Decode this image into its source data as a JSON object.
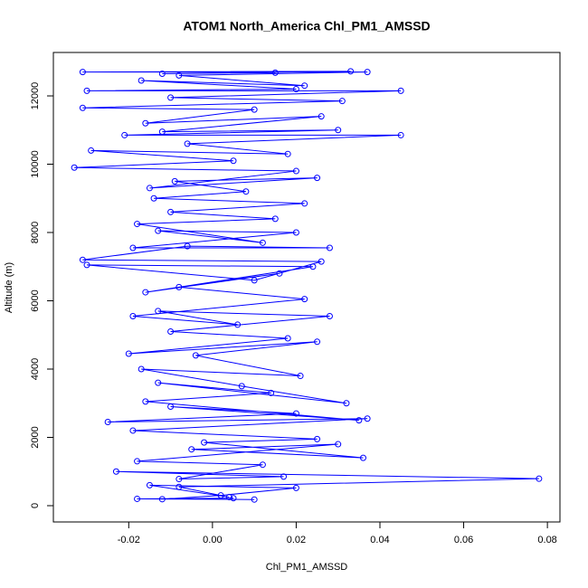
{
  "chart_data": {
    "type": "line",
    "title": "ATOM1 North_America Chl_PM1_AMSSD",
    "x_label": "Chl_PM1_AMSSD",
    "y_label": "Altitude (m)",
    "color": "#0000ff",
    "markers": true,
    "xlim": [
      -0.038,
      0.083
    ],
    "ylim": [
      -477,
      13272
    ],
    "xticks": [
      -0.02,
      {
        "value": 0,
        "label": "0.00"
      },
      0.02,
      0.04,
      0.06,
      0.08
    ],
    "yticks": [
      0,
      2000,
      4000,
      6000,
      8000,
      10000,
      12000
    ],
    "x": [
      0.01,
      -0.018,
      0.005,
      -0.012,
      0.002,
      0.02,
      -0.015,
      0.004,
      -0.008,
      0.078,
      -0.023,
      0.017,
      -0.008,
      0.012,
      -0.018,
      0.03,
      -0.005,
      0.036,
      -0.002,
      0.025,
      -0.019,
      0.037,
      -0.025,
      0.02,
      -0.01,
      0.035,
      -0.016,
      0.014,
      -0.013,
      0.032,
      0.007,
      -0.017,
      0.021,
      -0.004,
      0.025,
      -0.02,
      0.018,
      -0.01,
      0.028,
      -0.013,
      0.006,
      -0.019,
      0.022,
      -0.008,
      0.016,
      -0.016,
      0.024,
      -0.03,
      0.01,
      0.026,
      -0.031,
      -0.006,
      0.028,
      -0.019,
      0.02,
      -0.013,
      0.012,
      -0.018,
      0.015,
      -0.01,
      0.022,
      -0.014,
      0.008,
      -0.009,
      0.025,
      -0.015,
      0.02,
      -0.033,
      0.005,
      -0.029,
      0.018,
      -0.006,
      0.045,
      -0.021,
      0.03,
      -0.012,
      0.026,
      -0.016,
      0.01,
      -0.031,
      0.031,
      -0.01,
      0.045,
      -0.03,
      0.02,
      -0.017,
      0.022,
      -0.008,
      0.037,
      -0.031,
      0.033,
      -0.012,
      0.015
    ],
    "values": [
      180,
      200,
      220,
      190,
      300,
      520,
      600,
      250,
      550,
      790,
      1000,
      850,
      780,
      1200,
      1300,
      1800,
      1650,
      1400,
      1850,
      1950,
      2200,
      2550,
      2450,
      2700,
      2900,
      2500,
      3050,
      3300,
      3600,
      3000,
      3500,
      4000,
      3800,
      4400,
      4800,
      4450,
      4900,
      5100,
      5550,
      5700,
      5300,
      5550,
      6050,
      6400,
      6800,
      6250,
      7000,
      7050,
      6600,
      7150,
      7200,
      7600,
      7550,
      7550,
      8000,
      8050,
      7700,
      8250,
      8400,
      8600,
      8850,
      9000,
      9200,
      9500,
      9600,
      9300,
      9800,
      9900,
      10100,
      10400,
      10300,
      10600,
      10850,
      10850,
      11000,
      10950,
      11400,
      11200,
      11600,
      11650,
      11850,
      11950,
      12150,
      12150,
      12200,
      12450,
      12300,
      12600,
      12700,
      12700,
      12720,
      12650,
      12680
    ]
  }
}
